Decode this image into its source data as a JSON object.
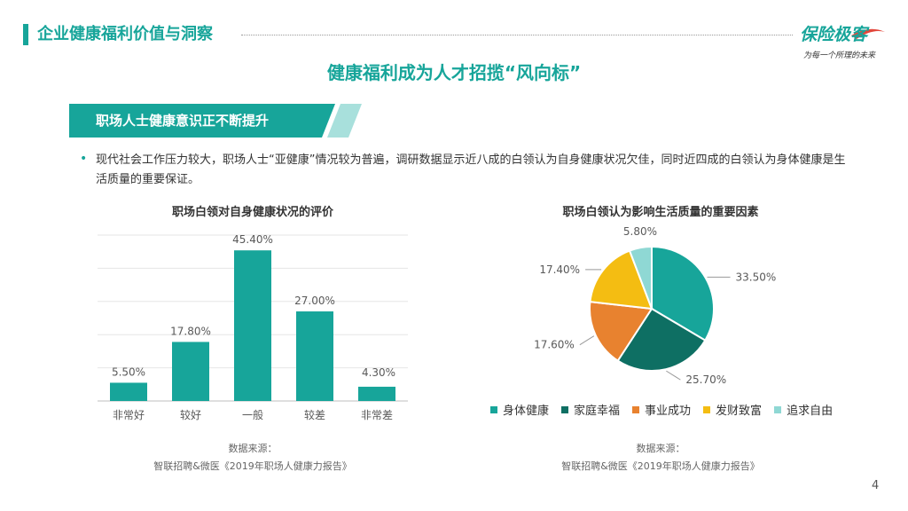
{
  "header": {
    "title": "企业健康福利价值与洞察"
  },
  "logo": {
    "text": "保险极客",
    "slogan": "为每一个所理的未来"
  },
  "main_title": "健康福利成为人才招揽“风向标”",
  "banner": {
    "text": "职场人士健康意识正不断提升"
  },
  "bullet": {
    "text": "现代社会工作压力较大，职场人士“亚健康”情况较为普遍，调研数据显示近八成的白领认为自身健康状况欠佳，同时近四成的白领认为身体健康是生活质量的重要保证。"
  },
  "page_number": "4",
  "colors": {
    "accent": "#17a59a",
    "bar": "#17a59a",
    "pie": [
      "#17a59a",
      "#0e6f63",
      "#e8822f",
      "#f4bd12",
      "#8fd8d4"
    ]
  },
  "chart_data": [
    {
      "type": "bar",
      "title": "职场白领对自身健康状况的评价",
      "categories": [
        "非常好",
        "较好",
        "一般",
        "较差",
        "非常差"
      ],
      "values": [
        5.5,
        17.8,
        45.4,
        27.0,
        4.3
      ],
      "value_labels": [
        "5.50%",
        "17.80%",
        "45.40%",
        "27.00%",
        "4.30%"
      ],
      "ylim": [
        0,
        50
      ],
      "grid": true,
      "source_label": "数据来源：",
      "source": "智联招聘&微医《2019年职场人健康力报告》"
    },
    {
      "type": "pie",
      "title": "职场白领认为影响生活质量的重要因素",
      "labels": [
        "身体健康",
        "家庭幸福",
        "事业成功",
        "发财致富",
        "追求自由"
      ],
      "values": [
        33.5,
        25.7,
        17.6,
        17.4,
        5.8
      ],
      "value_labels": [
        "33.50%",
        "25.70%",
        "17.60%",
        "17.40%",
        "5.80%"
      ],
      "legend": "bottom",
      "source_label": "数据来源：",
      "source": "智联招聘&微医《2019年职场人健康力报告》"
    }
  ]
}
